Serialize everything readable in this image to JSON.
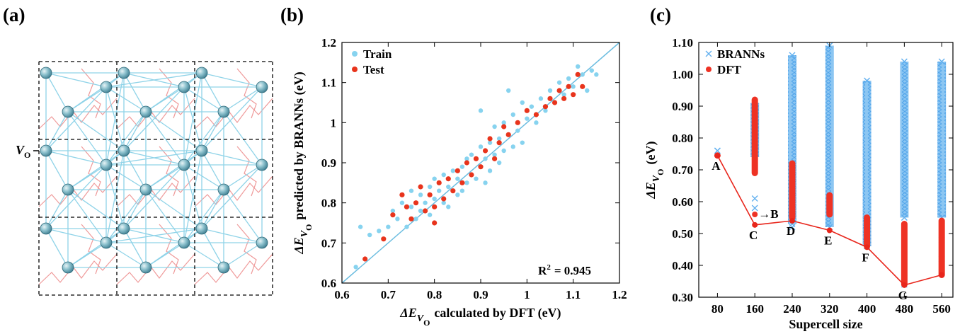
{
  "chart_data": [
    {
      "type": "lattice",
      "panel": "(a)",
      "label": "V",
      "label_sub": "O"
    },
    {
      "type": "scatter",
      "panel": "(b)",
      "xlabel": {
        "text": "ΔE",
        "sub": "V",
        "subsub": "O",
        "rest": "calculated by DFT (eV)"
      },
      "ylabel": {
        "text": "ΔE",
        "sub": "V",
        "subsub": "O",
        "rest": "predicted by BRANNs (eV)"
      },
      "annotation": {
        "text": "R",
        "sup": "2",
        "rest": "= 0.945"
      },
      "xlim": [
        0.6,
        1.2
      ],
      "ylim": [
        0.6,
        1.2
      ],
      "xticks": [
        0.6,
        0.7,
        0.8,
        0.9,
        1,
        1.1,
        1.2
      ],
      "yticks": [
        0.6,
        0.7,
        0.8,
        0.9,
        1,
        1.1,
        1.2
      ],
      "diagonal": true,
      "legend": "upper left",
      "series": [
        {
          "name": "Train",
          "color": "#87d3ef",
          "x": [
            0.63,
            0.64,
            0.66,
            0.68,
            0.7,
            0.71,
            0.72,
            0.73,
            0.74,
            0.75,
            0.75,
            0.76,
            0.77,
            0.77,
            0.78,
            0.79,
            0.79,
            0.8,
            0.8,
            0.81,
            0.82,
            0.82,
            0.83,
            0.83,
            0.84,
            0.85,
            0.85,
            0.86,
            0.86,
            0.87,
            0.87,
            0.88,
            0.88,
            0.89,
            0.9,
            0.9,
            0.91,
            0.91,
            0.92,
            0.92,
            0.93,
            0.93,
            0.94,
            0.94,
            0.95,
            0.95,
            0.96,
            0.97,
            0.97,
            0.98,
            0.99,
            1.0,
            1.01,
            1.02,
            1.03,
            1.04,
            1.05,
            1.06,
            1.07,
            1.08,
            1.09,
            1.1,
            1.11,
            1.12,
            1.13,
            1.14,
            1.15,
            0.9,
            0.96,
            0.99
          ],
          "values": [
            0.64,
            0.74,
            0.72,
            0.73,
            0.74,
            0.78,
            0.76,
            0.8,
            0.74,
            0.79,
            0.83,
            0.76,
            0.82,
            0.78,
            0.8,
            0.77,
            0.84,
            0.81,
            0.86,
            0.83,
            0.8,
            0.87,
            0.84,
            0.79,
            0.88,
            0.82,
            0.86,
            0.89,
            0.83,
            0.85,
            0.91,
            0.87,
            0.92,
            0.86,
            0.89,
            0.94,
            0.91,
            0.85,
            0.88,
            0.95,
            0.92,
            0.99,
            0.9,
            0.96,
            0.93,
            1.0,
            0.97,
            0.94,
            1.02,
            0.98,
            1.05,
            1.01,
            1.04,
            1.0,
            1.06,
            1.03,
            1.08,
            1.05,
            1.1,
            1.07,
            1.11,
            1.09,
            1.14,
            1.12,
            1.08,
            1.13,
            1.12,
            1.03,
            1.08,
            0.95
          ]
        },
        {
          "name": "Test",
          "color": "#e8341c",
          "x": [
            0.65,
            0.69,
            0.71,
            0.73,
            0.74,
            0.75,
            0.76,
            0.77,
            0.78,
            0.79,
            0.8,
            0.81,
            0.82,
            0.83,
            0.84,
            0.85,
            0.86,
            0.87,
            0.88,
            0.89,
            0.9,
            0.91,
            0.92,
            0.93,
            0.94,
            0.95,
            0.96,
            0.98,
            1.0,
            1.02,
            1.04,
            1.05,
            1.06,
            1.07,
            1.08,
            1.09,
            1.1,
            1.11,
            1.12,
            0.8
          ],
          "values": [
            0.66,
            0.71,
            0.77,
            0.82,
            0.79,
            0.76,
            0.8,
            0.84,
            0.78,
            0.82,
            0.79,
            0.85,
            0.81,
            0.86,
            0.83,
            0.88,
            0.85,
            0.9,
            0.87,
            0.91,
            0.89,
            0.93,
            0.96,
            0.91,
            0.95,
            0.99,
            0.97,
            1.0,
            1.03,
            1.02,
            1.04,
            1.06,
            1.05,
            1.08,
            1.06,
            1.09,
            1.07,
            1.12,
            1.09,
            0.75
          ]
        }
      ]
    },
    {
      "type": "range-scatter",
      "panel": "(c)",
      "xlabel": "Supercell size",
      "ylabel": {
        "text": "ΔE",
        "sub": "V",
        "subsub": "O",
        "rest": "(eV)"
      },
      "xlim": [
        40,
        584
      ],
      "ylim": [
        0.3,
        1.1
      ],
      "xticks": [
        80,
        160,
        240,
        320,
        400,
        480,
        560
      ],
      "yticks": [
        {
          "value": 0.3,
          "label": "0.30"
        },
        {
          "value": 0.4,
          "label": "0.40"
        },
        {
          "value": 0.5,
          "label": "0.50"
        },
        {
          "value": 0.6,
          "label": "0.60"
        },
        {
          "value": 0.7,
          "label": "0.70"
        },
        {
          "value": 0.8,
          "label": "0.80"
        },
        {
          "value": 0.9,
          "label": "0.90"
        },
        {
          "value": 1.0,
          "label": "1.00"
        },
        {
          "value": 1.1,
          "label": "1.10"
        }
      ],
      "legend": "upper left",
      "series": [
        {
          "name": "BRANNs",
          "color": "#62b0ef",
          "marker": "x",
          "x": [
            80,
            160,
            240,
            320,
            400,
            480,
            560
          ],
          "low": [
            0.76,
            0.74,
            0.53,
            0.52,
            0.46,
            0.55,
            0.55
          ],
          "high": [
            0.76,
            0.91,
            1.06,
            1.09,
            0.98,
            1.04,
            1.04
          ],
          "extra_x": [
            160,
            160,
            240,
            480,
            480,
            480,
            480,
            560,
            560,
            560
          ],
          "extra": [
            0.61,
            0.58,
            0.52,
            0.34,
            0.36,
            0.45,
            0.49,
            0.38,
            0.42,
            0.48
          ]
        },
        {
          "name": "DFT",
          "color": "#ee3224",
          "marker": "o",
          "x": [
            80,
            160,
            240,
            320,
            400,
            480,
            560
          ],
          "low": [
            0.745,
            0.69,
            0.55,
            0.56,
            0.46,
            0.34,
            0.37
          ],
          "high": [
            0.745,
            0.92,
            0.72,
            0.62,
            0.55,
            0.53,
            0.54
          ],
          "extra_x": [
            160
          ],
          "extra": [
            0.56
          ]
        }
      ],
      "line": {
        "color": "#e8261c",
        "x": [
          80,
          160,
          240,
          320,
          400,
          480,
          560
        ],
        "values": [
          0.745,
          0.527,
          0.54,
          0.51,
          0.457,
          0.338,
          0.37
        ],
        "labels": [
          "A",
          "C",
          "D",
          "E",
          "F",
          "G",
          null
        ]
      },
      "annotation": {
        "text": "→B",
        "x": 160,
        "y": 0.56
      }
    }
  ]
}
